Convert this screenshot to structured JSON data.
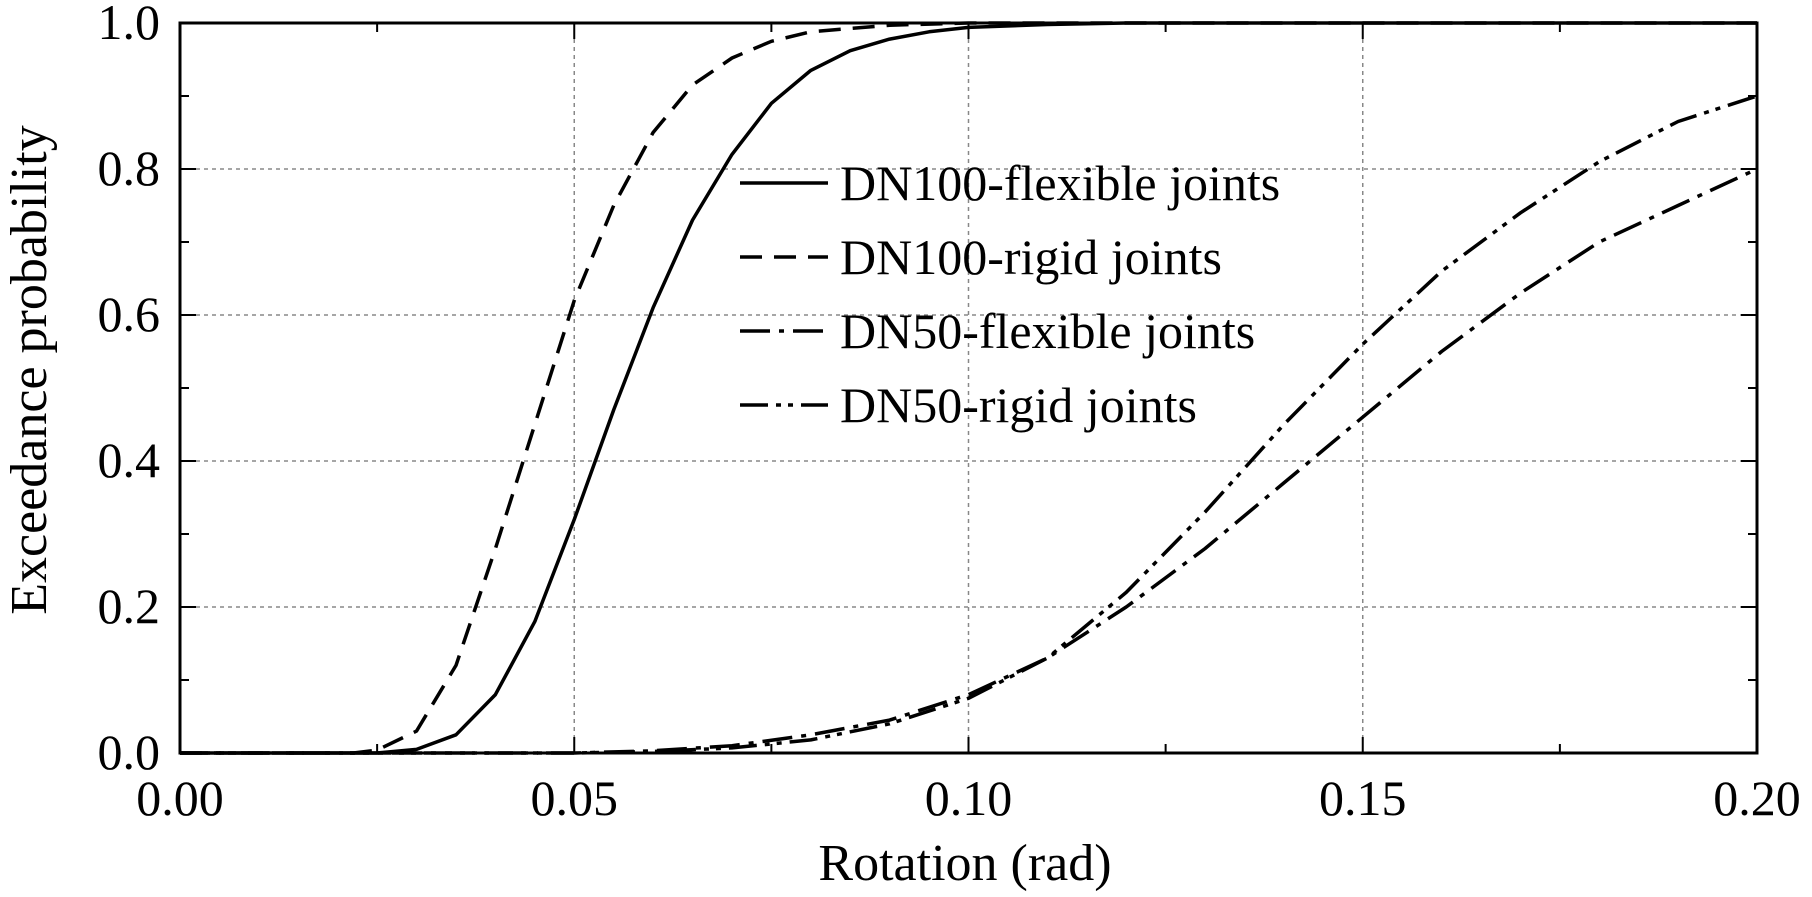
{
  "chart_data": {
    "type": "line",
    "title": "",
    "xlabel": "Rotation (rad)",
    "ylabel": "Exceedance probability",
    "xlim": [
      0.0,
      0.2
    ],
    "ylim": [
      0.0,
      1.0
    ],
    "x_ticks": [
      "0.00",
      "0.05",
      "0.10",
      "0.15",
      "0.20"
    ],
    "y_ticks": [
      "0.0",
      "0.2",
      "0.4",
      "0.6",
      "0.8",
      "1.0"
    ],
    "grid": true,
    "legend_position": "center",
    "line_color": "#000000",
    "series": [
      {
        "name": "DN100-flexible joints",
        "dash": "solid",
        "points": [
          [
            0.0,
            0.0
          ],
          [
            0.025,
            0.0
          ],
          [
            0.03,
            0.005
          ],
          [
            0.035,
            0.025
          ],
          [
            0.04,
            0.08
          ],
          [
            0.045,
            0.18
          ],
          [
            0.05,
            0.32
          ],
          [
            0.055,
            0.47
          ],
          [
            0.06,
            0.61
          ],
          [
            0.065,
            0.73
          ],
          [
            0.07,
            0.82
          ],
          [
            0.075,
            0.89
          ],
          [
            0.08,
            0.935
          ],
          [
            0.085,
            0.962
          ],
          [
            0.09,
            0.978
          ],
          [
            0.095,
            0.988
          ],
          [
            0.1,
            0.994
          ],
          [
            0.11,
            0.998
          ],
          [
            0.12,
            1.0
          ],
          [
            0.2,
            1.0
          ]
        ]
      },
      {
        "name": "DN100-rigid joints",
        "dash": "dashed",
        "points": [
          [
            0.0,
            0.0
          ],
          [
            0.022,
            0.0
          ],
          [
            0.025,
            0.004
          ],
          [
            0.03,
            0.03
          ],
          [
            0.035,
            0.12
          ],
          [
            0.04,
            0.28
          ],
          [
            0.045,
            0.45
          ],
          [
            0.05,
            0.62
          ],
          [
            0.055,
            0.75
          ],
          [
            0.06,
            0.85
          ],
          [
            0.065,
            0.915
          ],
          [
            0.07,
            0.952
          ],
          [
            0.075,
            0.975
          ],
          [
            0.08,
            0.988
          ],
          [
            0.09,
            0.997
          ],
          [
            0.1,
            1.0
          ],
          [
            0.2,
            1.0
          ]
        ]
      },
      {
        "name": "DN50-flexible joints",
        "dash": "dash-dot",
        "points": [
          [
            0.0,
            0.0
          ],
          [
            0.05,
            0.0
          ],
          [
            0.06,
            0.003
          ],
          [
            0.07,
            0.01
          ],
          [
            0.08,
            0.025
          ],
          [
            0.09,
            0.045
          ],
          [
            0.1,
            0.08
          ],
          [
            0.11,
            0.13
          ],
          [
            0.12,
            0.2
          ],
          [
            0.13,
            0.28
          ],
          [
            0.14,
            0.37
          ],
          [
            0.15,
            0.46
          ],
          [
            0.16,
            0.55
          ],
          [
            0.17,
            0.63
          ],
          [
            0.18,
            0.7
          ],
          [
            0.19,
            0.75
          ],
          [
            0.2,
            0.8
          ]
        ]
      },
      {
        "name": "DN50-rigid joints",
        "dash": "dash-dot-dot",
        "points": [
          [
            0.0,
            0.0
          ],
          [
            0.05,
            0.0
          ],
          [
            0.06,
            0.002
          ],
          [
            0.07,
            0.007
          ],
          [
            0.08,
            0.018
          ],
          [
            0.09,
            0.04
          ],
          [
            0.1,
            0.075
          ],
          [
            0.11,
            0.13
          ],
          [
            0.12,
            0.22
          ],
          [
            0.13,
            0.33
          ],
          [
            0.14,
            0.45
          ],
          [
            0.15,
            0.56
          ],
          [
            0.16,
            0.66
          ],
          [
            0.17,
            0.74
          ],
          [
            0.18,
            0.81
          ],
          [
            0.19,
            0.865
          ],
          [
            0.2,
            0.9
          ]
        ]
      }
    ]
  }
}
